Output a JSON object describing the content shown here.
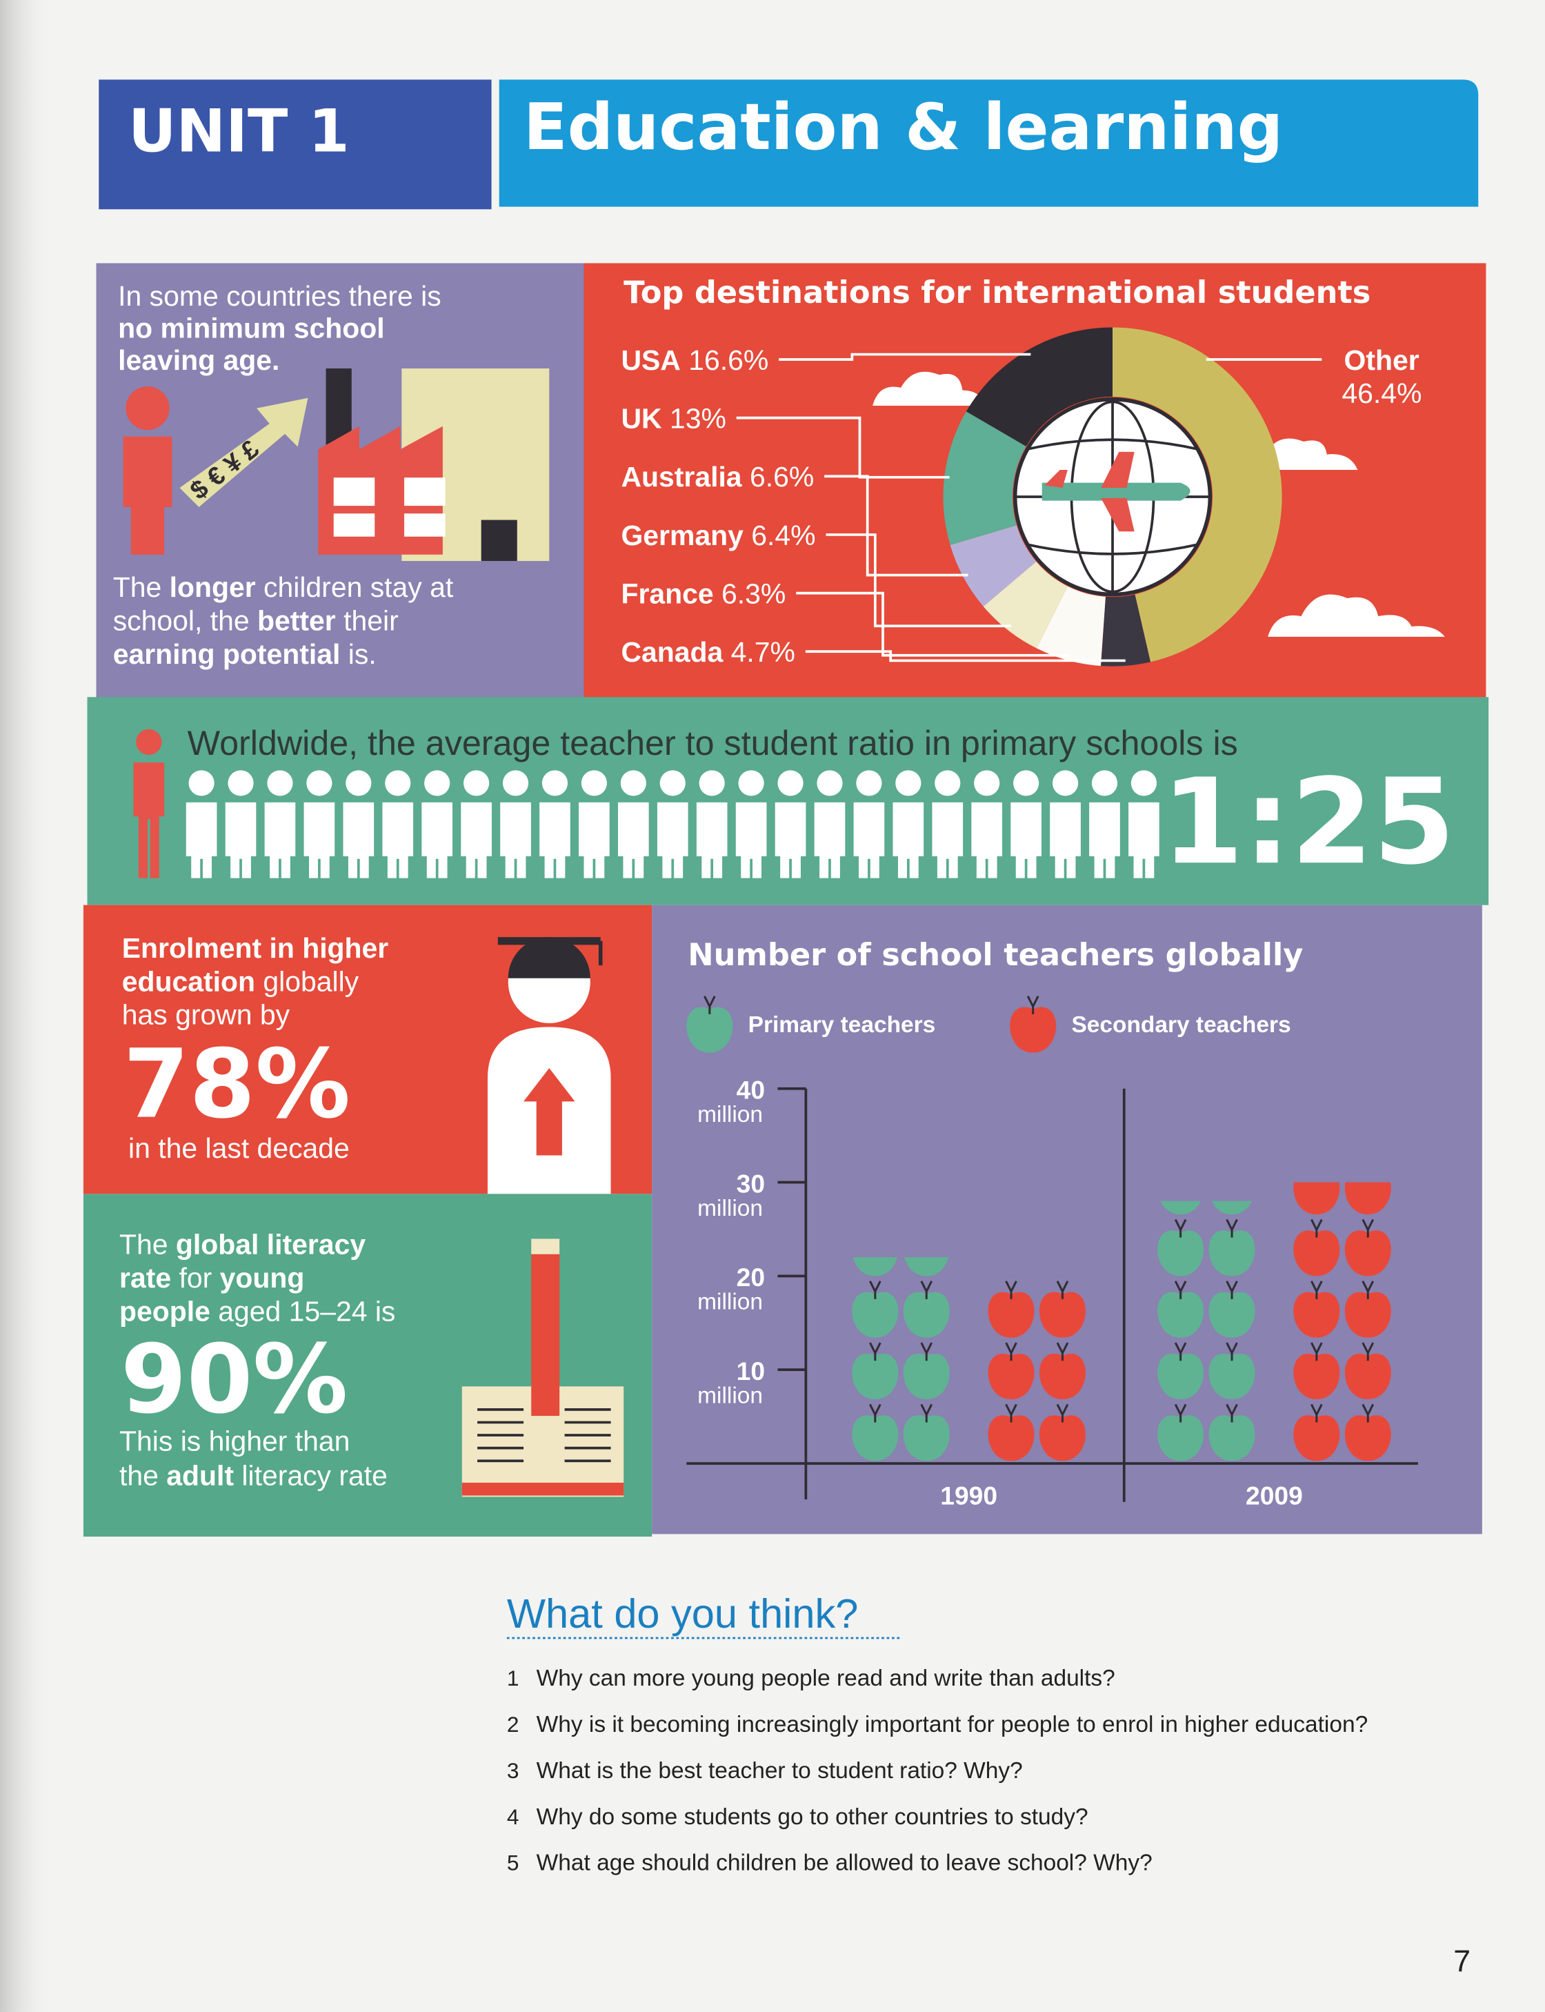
{
  "header": {
    "unit": "UNIT 1",
    "title": "Education & learning"
  },
  "leaving_age": {
    "top": [
      [
        "In some countries there is"
      ],
      [
        {
          "text": "no minimum school",
          "bold": true
        }
      ],
      [
        {
          "text": "leaving age.",
          "bold": true
        }
      ]
    ],
    "currency": "$ € ¥ £",
    "bottom": [
      [
        "The ",
        {
          "text": "longer",
          "bold": true
        },
        " children stay at"
      ],
      [
        "school, the ",
        {
          "text": "better",
          "bold": true
        },
        " their"
      ],
      [
        {
          "text": "earning potential",
          "bold": true
        },
        " is."
      ]
    ]
  },
  "destinations": {
    "type": "donut",
    "title": "Top destinations for international students",
    "categories": [
      "USA",
      "UK",
      "Australia",
      "Germany",
      "France",
      "Canada",
      "Other"
    ],
    "values": [
      16.6,
      13,
      6.6,
      6.4,
      6.3,
      4.7,
      46.4
    ],
    "value_labels": [
      "16.6%",
      "13%",
      "6.6%",
      "6.4%",
      "6.3%",
      "4.7%",
      "46.4%"
    ],
    "colors": [
      "#2f2c33",
      "#5fae96",
      "#b6b0d8",
      "#efeac8",
      "#fbfaf4",
      "#3b3743",
      "#cbbd5f"
    ]
  },
  "ratio": {
    "text": "Worldwide, the average teacher to student ratio in primary schools is",
    "label": "1:25",
    "teachers": 1,
    "students": 25
  },
  "enrolment": {
    "lines": [
      [
        {
          "text": "Enrolment in higher",
          "bold": true
        }
      ],
      [
        {
          "text": "education",
          "bold": true
        },
        " globally"
      ],
      [
        "has grown by"
      ]
    ],
    "figure": "78%",
    "after": "in the last decade"
  },
  "literacy": {
    "lines": [
      [
        "The ",
        {
          "text": "global literacy",
          "bold": true
        }
      ],
      [
        {
          "text": "rate",
          "bold": true
        },
        " for ",
        {
          "text": "young",
          "bold": true
        }
      ],
      [
        {
          "text": "people",
          "bold": true
        },
        " aged 15–24 is"
      ]
    ],
    "figure": "90%",
    "after": [
      [
        "This is higher than"
      ],
      [
        "the ",
        {
          "text": "adult",
          "bold": true
        },
        " literacy rate"
      ]
    ]
  },
  "teachers_chart": {
    "type": "bar",
    "title": "Number of school teachers globally",
    "categories": [
      "1990",
      "2009"
    ],
    "series": [
      {
        "name": "Primary teachers",
        "color": "#5fb393",
        "values": [
          22,
          28
        ]
      },
      {
        "name": "Secondary teachers",
        "color": "#e8483a",
        "values": [
          20,
          30
        ]
      }
    ],
    "ylim": [
      0,
      40
    ],
    "yticks": [
      10,
      20,
      30,
      40
    ],
    "ytick_unit": "million"
  },
  "questions": {
    "title": "What do you think?",
    "items": [
      {
        "number": 1,
        "text": "Why can more young people read and write than adults?"
      },
      {
        "number": 2,
        "text": "Why is it becoming increasingly important for people to enrol in higher education?"
      },
      {
        "number": 3,
        "text": "What is the best teacher to student ratio? Why?"
      },
      {
        "number": 4,
        "text": "Why do some students go to other countries to study?"
      },
      {
        "number": 5,
        "text": "What age should children be allowed to leave school? Why?"
      }
    ]
  },
  "page_number": 7
}
